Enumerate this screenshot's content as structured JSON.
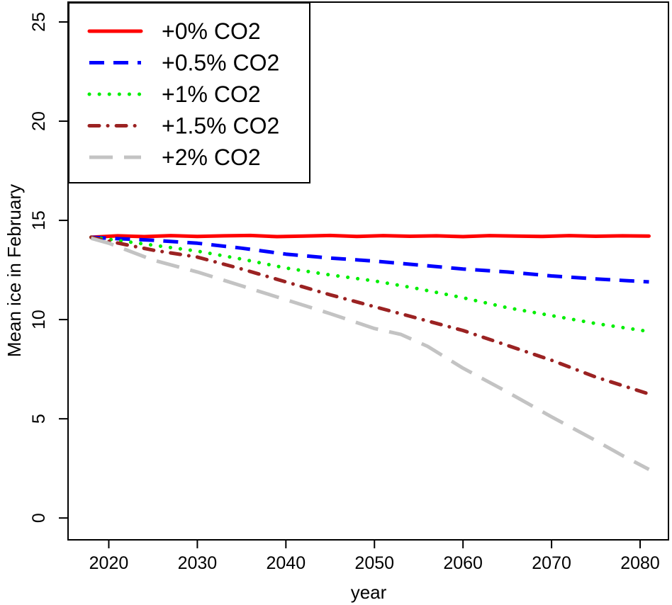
{
  "figure": {
    "background": "#FFFFFF",
    "axis_color": "#000000",
    "text_color": "#000000"
  },
  "chart_data": {
    "type": "line",
    "title": "",
    "xlabel": "year",
    "ylabel": "Mean ice in February",
    "xlim": [
      2015.4,
      2083.2
    ],
    "ylim": [
      -1.1,
      26.0
    ],
    "x_ticks": [
      2020,
      2030,
      2040,
      2050,
      2060,
      2070,
      2080
    ],
    "y_ticks": [
      0,
      5,
      10,
      15,
      20,
      25
    ],
    "grid": false,
    "legend_position": "topleft",
    "series": [
      {
        "name": "+0% CO2",
        "color": "#FF0000",
        "linetype": "solid",
        "dash": [],
        "linecap": "round",
        "width": 5,
        "x": [
          2018,
          2021,
          2024,
          2027,
          2030,
          2033,
          2036,
          2039,
          2042,
          2045,
          2048,
          2051,
          2054,
          2057,
          2060,
          2063,
          2066,
          2069,
          2072,
          2075,
          2078,
          2081
        ],
        "y": [
          14.15,
          14.22,
          14.18,
          14.23,
          14.19,
          14.22,
          14.24,
          14.18,
          14.21,
          14.24,
          14.19,
          14.23,
          14.2,
          14.22,
          14.18,
          14.23,
          14.21,
          14.19,
          14.23,
          14.2,
          14.22,
          14.21
        ]
      },
      {
        "name": "+0.5% CO2",
        "color": "#0000FF",
        "linetype": "dashed",
        "dash": [
          21,
          13
        ],
        "linecap": "butt",
        "width": 5,
        "x": [
          2018,
          2020,
          2025,
          2030,
          2035,
          2040,
          2045,
          2050,
          2055,
          2060,
          2065,
          2070,
          2075,
          2081
        ],
        "y": [
          14.15,
          14.1,
          14.0,
          13.85,
          13.6,
          13.3,
          13.1,
          12.95,
          12.75,
          12.55,
          12.4,
          12.2,
          12.05,
          11.9
        ]
      },
      {
        "name": "+1% CO2",
        "color": "#00EE00",
        "linetype": "dotted",
        "dash": [
          0.1,
          14
        ],
        "linecap": "round",
        "width": 5,
        "x": [
          2018,
          2020,
          2025,
          2030,
          2035,
          2040,
          2045,
          2050,
          2055,
          2060,
          2065,
          2070,
          2075,
          2081
        ],
        "y": [
          14.15,
          14.05,
          13.75,
          13.45,
          13.05,
          12.6,
          12.25,
          11.95,
          11.55,
          11.1,
          10.6,
          10.2,
          9.8,
          9.4
        ]
      },
      {
        "name": "+1.5% CO2",
        "color": "#9B2222",
        "linetype": "dotdash",
        "dash": [
          14,
          12,
          0.1,
          12
        ],
        "linecap": "round",
        "width": 5,
        "x": [
          2018,
          2020,
          2025,
          2030,
          2035,
          2040,
          2045,
          2050,
          2055,
          2060,
          2065,
          2070,
          2075,
          2081
        ],
        "y": [
          14.15,
          13.95,
          13.5,
          13.15,
          12.55,
          11.9,
          11.25,
          10.65,
          10.05,
          9.45,
          8.7,
          7.95,
          7.1,
          6.25
        ]
      },
      {
        "name": "+2% CO2",
        "color": "#C3C3C3",
        "linetype": "longdash",
        "dash": [
          33,
          16
        ],
        "linecap": "butt",
        "width": 5,
        "x": [
          2018,
          2020,
          2025,
          2030,
          2035,
          2040,
          2045,
          2050,
          2053,
          2056,
          2060,
          2065,
          2070,
          2075,
          2078,
          2081
        ],
        "y": [
          14.1,
          13.85,
          13.0,
          12.4,
          11.7,
          11.0,
          10.3,
          9.55,
          9.25,
          8.65,
          7.55,
          6.35,
          5.1,
          3.9,
          3.15,
          2.45
        ]
      }
    ]
  }
}
